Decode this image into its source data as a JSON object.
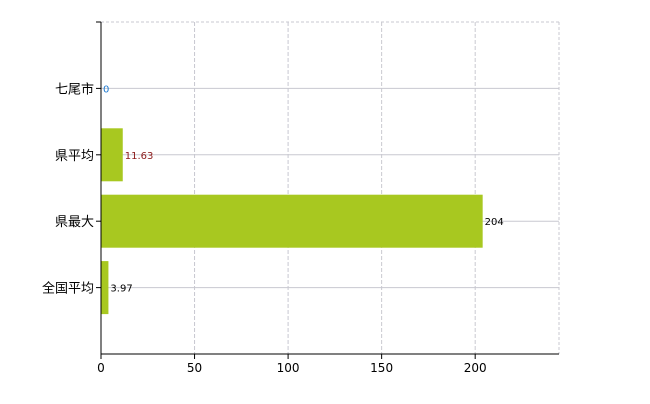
{
  "chart_data": {
    "type": "bar",
    "orientation": "horizontal",
    "categories": [
      "七尾市",
      "県平均",
      "県最大",
      "全国平均"
    ],
    "values": [
      0,
      11.63,
      204,
      3.97
    ],
    "value_labels": [
      "0",
      "11.63",
      "204",
      "3.97"
    ],
    "title": "",
    "xlabel": "",
    "ylabel": "",
    "xlim": [
      0,
      244.8
    ],
    "xticks": [
      0,
      50,
      100,
      150,
      200
    ],
    "grid": true,
    "legend": "none",
    "bar_color": "#a8c820",
    "label_colors": [
      "#1e7ad0",
      "#8b1a1a",
      "#000000",
      "#000000"
    ]
  }
}
